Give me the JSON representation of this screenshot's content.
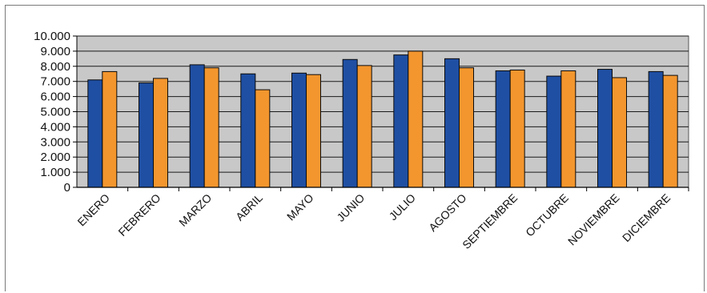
{
  "chart_data": {
    "type": "bar",
    "categories": [
      "ENERO",
      "FEBRERO",
      "MARZO",
      "ABRIL",
      "MAYO",
      "JUNIO",
      "JULIO",
      "AGOSTO",
      "SEPTIEMBRE",
      "OCTUBRE",
      "NOVIEMBRE",
      "DICIEMBRE"
    ],
    "series": [
      {
        "color": "#1f4fa3",
        "values": [
          7100,
          6900,
          8100,
          7500,
          7550,
          8450,
          8750,
          8500,
          7700,
          7350,
          7800,
          7650
        ]
      },
      {
        "color": "#f3962e",
        "values": [
          7650,
          7200,
          7900,
          6450,
          7450,
          8050,
          9000,
          7900,
          7750,
          7700,
          7250,
          7400
        ]
      }
    ],
    "ylim": [
      0,
      10000
    ],
    "yticks": [
      0,
      1000,
      2000,
      3000,
      4000,
      5000,
      6000,
      7000,
      8000,
      9000,
      10000
    ],
    "ytick_labels": [
      "0",
      "1.000",
      "2.000",
      "3.000",
      "4.000",
      "5.000",
      "6.000",
      "7.000",
      "8.000",
      "9.000",
      "10.000"
    ],
    "grid": true,
    "plot_background": "#c8c8c8",
    "legend": false
  }
}
